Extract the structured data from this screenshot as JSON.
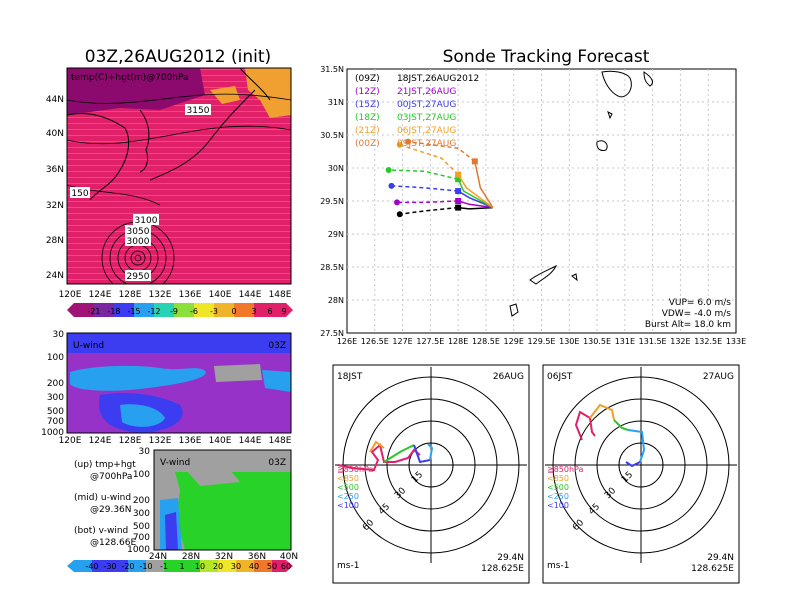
{
  "titles": {
    "left": "03Z,26AUG2012 (init)",
    "right": "Sonde Tracking Forecast"
  },
  "colors": {
    "magenta_bg": "#e0216a",
    "dark_magenta": "#8c0a6e",
    "ocean_stripe": "#f03264",
    "warm": "#f0a030",
    "uwind_blue": "#3c3cf0",
    "uwind_cyan": "#28a0f0",
    "uwind_purple": "#9632c8",
    "vwind_green": "#28d228",
    "gray": "#a0a0a0"
  },
  "top_left_map": {
    "label": "temp(C)+hgt(m)@700hPa",
    "contours": [
      "3150",
      "150",
      "3100",
      "3050",
      "3000",
      "2950"
    ],
    "lat_ticks": [
      "44N",
      "40N",
      "36N",
      "32N",
      "28N",
      "24N"
    ],
    "lon_ticks": [
      "120E",
      "124E",
      "128E",
      "132E",
      "136E",
      "140E",
      "144E",
      "148E"
    ],
    "colorbar_ticks": [
      "-21",
      "-18",
      "-15",
      "-12",
      "-9",
      "-6",
      "-3",
      "0",
      "3",
      "6",
      "9"
    ]
  },
  "uwind_panel": {
    "label": "U-wind",
    "time": "03Z",
    "p_ticks": [
      "30",
      "100",
      "200",
      "300",
      "500",
      "700",
      "1000"
    ],
    "lon_ticks": [
      "120E",
      "124E",
      "128E",
      "132E",
      "136E",
      "140E",
      "144E",
      "148E"
    ]
  },
  "vwind_panel": {
    "label": "V-wind",
    "time": "03Z",
    "p_ticks": [
      "30",
      "100",
      "200",
      "300",
      "500",
      "700",
      "1000"
    ],
    "lat_ticks": [
      "24N",
      "28N",
      "32N",
      "36N",
      "40N"
    ],
    "colorbar_ticks": [
      "-40",
      "-30",
      "-20",
      "-10",
      "-1",
      "1",
      "10",
      "20",
      "30",
      "40",
      "50",
      "60"
    ]
  },
  "captions": [
    {
      "line1": "(up) tmp+hgt",
      "line2": "@700hPa"
    },
    {
      "line1": "(mid) u-wind",
      "line2": "@29.36N"
    },
    {
      "line1": "(bot) v-wind",
      "line2": "@128.66E"
    }
  ],
  "track_panel": {
    "lat_ticks": [
      "31.5N",
      "31N",
      "30.5N",
      "30N",
      "29.5N",
      "29N",
      "28.5N",
      "28N",
      "27.5N"
    ],
    "lon_ticks": [
      "126E",
      "126.5E",
      "127E",
      "127.5E",
      "128E",
      "128.5E",
      "129E",
      "129.5E",
      "130E",
      "130.5E",
      "131E",
      "131.5E",
      "132E",
      "132.5E",
      "133E"
    ],
    "legend": [
      {
        "code": "(09Z)",
        "time": "18JST,26AUG2012",
        "color": "#000000"
      },
      {
        "code": "(12Z)",
        "time": "21JST,26AUG",
        "color": "#a000c8"
      },
      {
        "code": "(15Z)",
        "time": "00JST,27AUG",
        "color": "#3c3cf0"
      },
      {
        "code": "(18Z)",
        "time": "03JST,27AUG",
        "color": "#28c828"
      },
      {
        "code": "(21Z)",
        "time": "06JST,27AUG",
        "color": "#f0a028"
      },
      {
        "code": "(00Z)",
        "time": "09JST,27AUG",
        "color": "#e07830"
      }
    ],
    "params": [
      "VUP= 6.0 m/s",
      "VDW= -4.0 m/s",
      "Burst Alt= 18.0 km"
    ]
  },
  "hodographs": [
    {
      "time": "18JST",
      "date": "26AUG",
      "lat": "29.4N",
      "lon": "128.625E",
      "unit": "ms-1",
      "ring_labels": [
        "15",
        "30",
        "45",
        "60"
      ],
      "legend": [
        "≧850hPa",
        "<850",
        "<500",
        "<250",
        "<100"
      ]
    },
    {
      "time": "06JST",
      "date": "27AUG",
      "lat": "29.4N",
      "lon": "128.625E",
      "unit": "ms-1",
      "ring_labels": [
        "15",
        "30",
        "45",
        "60"
      ],
      "legend": [
        "≧850hPa",
        "<850",
        "<500",
        "<250",
        "<100"
      ]
    }
  ],
  "chart_data": {
    "type": "line",
    "xlim": [
      126,
      133
    ],
    "ylim": [
      27.5,
      31.5
    ],
    "launch": [
      128.625,
      29.4
    ],
    "series": [
      {
        "color": "#000000",
        "points": [
          [
            128.625,
            29.4
          ],
          [
            128.2,
            29.38
          ],
          [
            128.0,
            29.4
          ],
          [
            127.4,
            29.35
          ],
          [
            126.95,
            29.3
          ]
        ]
      },
      {
        "color": "#a000c8",
        "points": [
          [
            128.625,
            29.4
          ],
          [
            128.2,
            29.45
          ],
          [
            128.0,
            29.5
          ],
          [
            127.4,
            29.48
          ],
          [
            126.9,
            29.48
          ]
        ]
      },
      {
        "color": "#3c3cf0",
        "points": [
          [
            128.625,
            29.4
          ],
          [
            128.2,
            29.55
          ],
          [
            128.0,
            29.65
          ],
          [
            127.4,
            29.7
          ],
          [
            126.8,
            29.73
          ]
        ]
      },
      {
        "color": "#28c828",
        "points": [
          [
            128.625,
            29.4
          ],
          [
            128.1,
            29.65
          ],
          [
            128.0,
            29.83
          ],
          [
            127.4,
            29.95
          ],
          [
            126.75,
            29.97
          ]
        ]
      },
      {
        "color": "#f0a028",
        "points": [
          [
            128.625,
            29.4
          ],
          [
            128.15,
            29.7
          ],
          [
            128.0,
            29.9
          ],
          [
            127.7,
            30.15
          ],
          [
            126.95,
            30.35
          ]
        ]
      },
      {
        "color": "#e07830",
        "points": [
          [
            128.625,
            29.4
          ],
          [
            128.4,
            29.7
          ],
          [
            128.3,
            30.1
          ],
          [
            128.0,
            30.3
          ],
          [
            127.1,
            30.4
          ]
        ]
      }
    ]
  }
}
